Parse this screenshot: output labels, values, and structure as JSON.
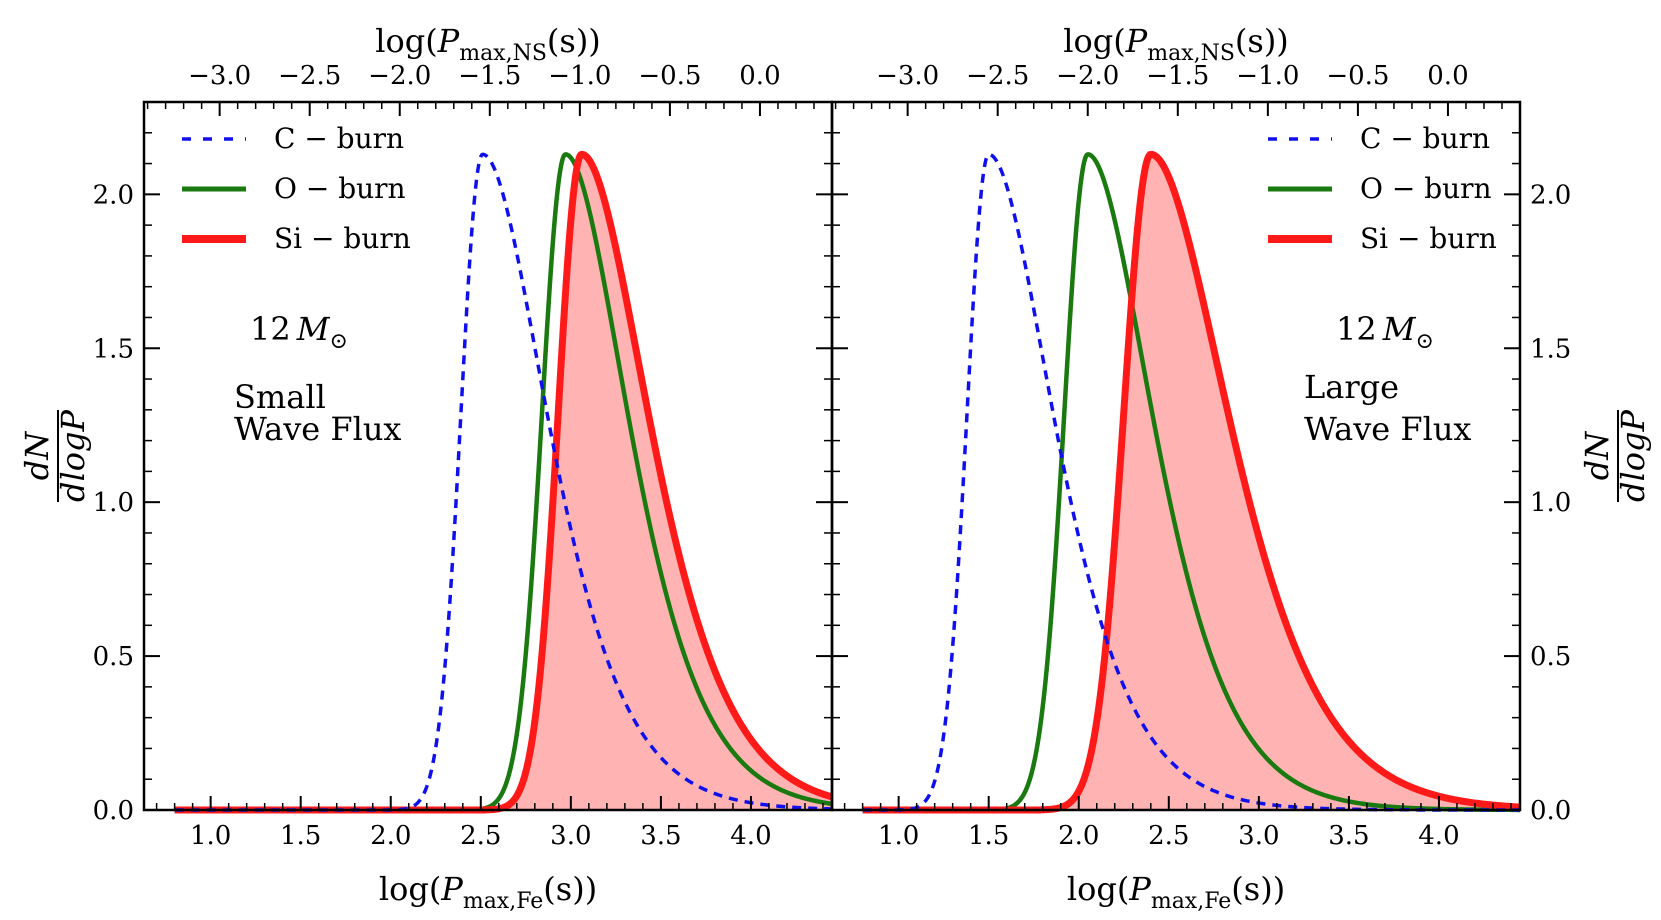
{
  "figure": {
    "left_panel": {
      "top_axis": {
        "label_func": "log",
        "label_var": "P",
        "label_sub": "max,NS",
        "label_unit": "s",
        "ticks": [
          -3.0,
          -2.5,
          -2.0,
          -1.5,
          -1.0,
          -0.5,
          0.0
        ],
        "tick_labels": [
          "−3.0",
          "−2.5",
          "−2.0",
          "−1.5",
          "−1.0",
          "−0.5",
          "0.0"
        ]
      },
      "bottom_axis": {
        "label_func": "log",
        "label_var": "P",
        "label_sub": "max,Fe",
        "label_unit": "s",
        "ticks": [
          1.0,
          1.5,
          2.0,
          2.5,
          3.0,
          3.5,
          4.0
        ],
        "tick_labels": [
          "1.0",
          "1.5",
          "2.0",
          "2.5",
          "3.0",
          "3.5",
          "4.0"
        ]
      },
      "y_axis": {
        "label_num": "dN",
        "label_den": "dlogP",
        "ticks": [
          0.0,
          0.5,
          1.0,
          1.5,
          2.0
        ],
        "tick_labels": [
          "0.0",
          "0.5",
          "1.0",
          "1.5",
          "2.0"
        ]
      },
      "legend": [
        {
          "label": "C − burn",
          "color": "#1010ee",
          "style": "dashed"
        },
        {
          "label": "O − burn",
          "color": "#1a7a10",
          "style": "solid"
        },
        {
          "label": "Si − burn",
          "color": "#ff1a1a",
          "style": "thick"
        }
      ],
      "annotation": {
        "mass_number": "12",
        "mass_symbol": "M",
        "mass_sub": "⊙",
        "line1": "Small",
        "line2": "Wave Flux"
      }
    },
    "right_panel": {
      "top_axis": {
        "label_func": "log",
        "label_var": "P",
        "label_sub": "max,NS",
        "label_unit": "s",
        "ticks": [
          -3.0,
          -2.5,
          -2.0,
          -1.5,
          -1.0,
          -0.5,
          0.0
        ],
        "tick_labels": [
          "−3.0",
          "−2.5",
          "−2.0",
          "−1.5",
          "−1.0",
          "−0.5",
          "0.0"
        ]
      },
      "bottom_axis": {
        "label_func": "log",
        "label_var": "P",
        "label_sub": "max,Fe",
        "label_unit": "s",
        "ticks": [
          1.0,
          1.5,
          2.0,
          2.5,
          3.0,
          3.5,
          4.0
        ],
        "tick_labels": [
          "1.0",
          "1.5",
          "2.0",
          "2.5",
          "3.0",
          "3.5",
          "4.0"
        ]
      },
      "y_axis": {
        "label_num": "dN",
        "label_den": "dlogP",
        "ticks": [
          0.0,
          0.5,
          1.0,
          1.5,
          2.0
        ],
        "tick_labels": [
          "0.0",
          "0.5",
          "1.0",
          "1.5",
          "2.0"
        ]
      },
      "legend": [
        {
          "label": "C − burn",
          "color": "#1010ee",
          "style": "dashed"
        },
        {
          "label": "O − burn",
          "color": "#1a7a10",
          "style": "solid"
        },
        {
          "label": "Si − burn",
          "color": "#ff1a1a",
          "style": "thick"
        }
      ],
      "annotation": {
        "mass_number": "12",
        "mass_symbol": "M",
        "mass_sub": "⊙",
        "line1": "Large",
        "line2": "Wave Flux"
      }
    }
  },
  "chart_data": [
    {
      "type": "line",
      "title": "",
      "xlabel": "log(Pmax,Fe(s))",
      "ylabel": "dN/dlogP",
      "x2label": "log(Pmax,NS(s))",
      "xlim": [
        0.63,
        4.45
      ],
      "ylim": [
        0.0,
        2.3
      ],
      "x2_offset": -4.05,
      "grid": false,
      "legend_position": "top-left",
      "series": [
        {
          "name": "C − burn",
          "peak_x": 2.51,
          "peak_y": 2.13,
          "sigma_left": 0.12,
          "sigma_right": 0.3,
          "shape": "skewed-peak",
          "fill": false
        },
        {
          "name": "O − burn",
          "peak_x": 2.97,
          "peak_y": 2.13,
          "sigma_left": 0.13,
          "sigma_right": 0.29,
          "shape": "skewed-peak",
          "fill": false
        },
        {
          "name": "Si − burn",
          "peak_x": 3.06,
          "peak_y": 2.13,
          "sigma_left": 0.13,
          "sigma_right": 0.31,
          "shape": "skewed-peak",
          "fill": true
        }
      ]
    },
    {
      "type": "line",
      "title": "",
      "xlabel": "log(Pmax,Fe(s))",
      "ylabel": "dN/dlogP",
      "x2label": "log(Pmax,NS(s))",
      "xlim": [
        0.63,
        4.45
      ],
      "ylim": [
        0.0,
        2.3
      ],
      "x2_offset": -4.05,
      "grid": false,
      "legend_position": "top-right",
      "series": [
        {
          "name": "C − burn",
          "peak_x": 1.5,
          "peak_y": 2.13,
          "sigma_left": 0.12,
          "sigma_right": 0.3,
          "shape": "skewed-peak",
          "fill": false
        },
        {
          "name": "O − burn",
          "peak_x": 2.05,
          "peak_y": 2.13,
          "sigma_left": 0.13,
          "sigma_right": 0.3,
          "shape": "skewed-peak",
          "fill": false
        },
        {
          "name": "Si − burn",
          "peak_x": 2.4,
          "peak_y": 2.13,
          "sigma_left": 0.15,
          "sigma_right": 0.36,
          "shape": "skewed-peak",
          "fill": true
        }
      ]
    }
  ]
}
